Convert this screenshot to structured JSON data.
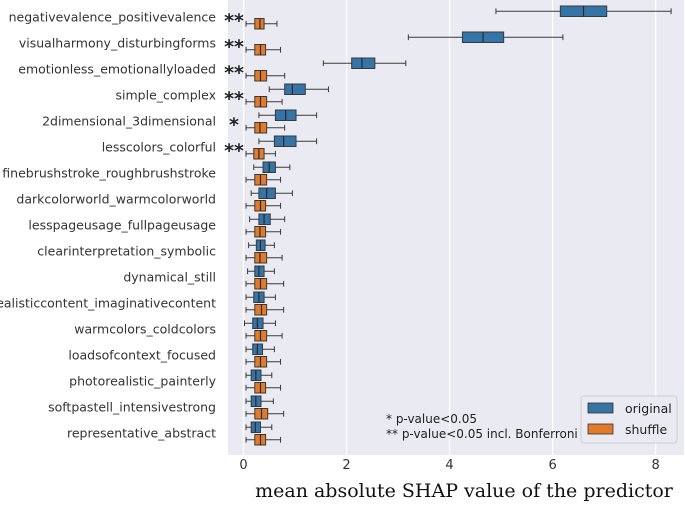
{
  "chart_data": {
    "type": "boxplot",
    "orientation": "horizontal",
    "xlabel": "mean absolute SHAP value of the predictor",
    "xlim": [
      -0.3,
      8.55
    ],
    "xticks": [
      0,
      2,
      4,
      6,
      8
    ],
    "grid": true,
    "legend_position": "bottom-right",
    "colors": {
      "original": "#3574a6",
      "shuffle": "#e07b2b",
      "background": "#eaeaf2",
      "median": "#2b2b2b"
    },
    "annotations": [
      "* p-value<0.05",
      "** p-value<0.05 incl. Bonferroni"
    ],
    "series": [
      {
        "name": "original"
      },
      {
        "name": "shuffle"
      }
    ],
    "categories": [
      {
        "label": "negativevalence_positivevalence",
        "sig": "**",
        "original": {
          "whislo": 4.9,
          "q1": 6.15,
          "med": 6.6,
          "q3": 7.05,
          "whishi": 8.3
        },
        "shuffle": {
          "whislo": 0.05,
          "q1": 0.22,
          "med": 0.32,
          "q3": 0.4,
          "whishi": 0.65
        }
      },
      {
        "label": "visualharmony_disturbingforms",
        "sig": "**",
        "original": {
          "whislo": 3.2,
          "q1": 4.25,
          "med": 4.65,
          "q3": 5.05,
          "whishi": 6.2
        },
        "shuffle": {
          "whislo": 0.05,
          "q1": 0.22,
          "med": 0.33,
          "q3": 0.43,
          "whishi": 0.72
        }
      },
      {
        "label": "emotionless_emotionallyloaded",
        "sig": "**",
        "original": {
          "whislo": 1.55,
          "q1": 2.1,
          "med": 2.3,
          "q3": 2.55,
          "whishi": 3.15
        },
        "shuffle": {
          "whislo": 0.05,
          "q1": 0.22,
          "med": 0.33,
          "q3": 0.45,
          "whishi": 0.8
        }
      },
      {
        "label": "simple_complex",
        "sig": "**",
        "original": {
          "whislo": 0.5,
          "q1": 0.8,
          "med": 0.95,
          "q3": 1.2,
          "whishi": 1.65
        },
        "shuffle": {
          "whislo": 0.05,
          "q1": 0.22,
          "med": 0.33,
          "q3": 0.45,
          "whishi": 0.75
        }
      },
      {
        "label": "2dimensional_3dimensional",
        "sig": "*",
        "original": {
          "whislo": 0.3,
          "q1": 0.62,
          "med": 0.82,
          "q3": 1.02,
          "whishi": 1.42
        },
        "shuffle": {
          "whislo": 0.05,
          "q1": 0.22,
          "med": 0.32,
          "q3": 0.45,
          "whishi": 0.8
        }
      },
      {
        "label": "lesscolors_colorful",
        "sig": "**",
        "original": {
          "whislo": 0.3,
          "q1": 0.6,
          "med": 0.78,
          "q3": 1.02,
          "whishi": 1.42
        },
        "shuffle": {
          "whislo": 0.05,
          "q1": 0.2,
          "med": 0.3,
          "q3": 0.4,
          "whishi": 0.62
        }
      },
      {
        "label": "finebrushstroke_roughbrushstroke",
        "sig": "",
        "original": {
          "whislo": 0.2,
          "q1": 0.38,
          "med": 0.5,
          "q3": 0.62,
          "whishi": 0.9
        },
        "shuffle": {
          "whislo": 0.05,
          "q1": 0.22,
          "med": 0.33,
          "q3": 0.45,
          "whishi": 0.72
        }
      },
      {
        "label": "darkcolorworld_warmcolorworld",
        "sig": "",
        "original": {
          "whislo": 0.15,
          "q1": 0.3,
          "med": 0.45,
          "q3": 0.62,
          "whishi": 0.95
        },
        "shuffle": {
          "whislo": 0.05,
          "q1": 0.22,
          "med": 0.33,
          "q3": 0.43,
          "whishi": 0.72
        }
      },
      {
        "label": "lesspageusage_fullpageusage",
        "sig": "",
        "original": {
          "whislo": 0.12,
          "q1": 0.3,
          "med": 0.4,
          "q3": 0.52,
          "whishi": 0.8
        },
        "shuffle": {
          "whislo": 0.05,
          "q1": 0.22,
          "med": 0.32,
          "q3": 0.43,
          "whishi": 0.72
        }
      },
      {
        "label": "clearinterpretation_symbolic",
        "sig": "",
        "original": {
          "whislo": 0.1,
          "q1": 0.25,
          "med": 0.33,
          "q3": 0.42,
          "whishi": 0.6
        },
        "shuffle": {
          "whislo": 0.05,
          "q1": 0.22,
          "med": 0.32,
          "q3": 0.45,
          "whishi": 0.75
        }
      },
      {
        "label": "dynamical_still",
        "sig": "",
        "original": {
          "whislo": 0.08,
          "q1": 0.22,
          "med": 0.3,
          "q3": 0.4,
          "whishi": 0.6
        },
        "shuffle": {
          "whislo": 0.05,
          "q1": 0.22,
          "med": 0.33,
          "q3": 0.45,
          "whishi": 0.78
        }
      },
      {
        "label": "realisticcontent_imaginativecontent",
        "sig": "",
        "original": {
          "whislo": 0.05,
          "q1": 0.2,
          "med": 0.3,
          "q3": 0.4,
          "whishi": 0.62
        },
        "shuffle": {
          "whislo": 0.05,
          "q1": 0.22,
          "med": 0.35,
          "q3": 0.45,
          "whishi": 0.78
        }
      },
      {
        "label": "warmcolors_coldcolors",
        "sig": "",
        "original": {
          "whislo": 0.02,
          "q1": 0.18,
          "med": 0.27,
          "q3": 0.38,
          "whishi": 0.62
        },
        "shuffle": {
          "whislo": 0.05,
          "q1": 0.22,
          "med": 0.33,
          "q3": 0.45,
          "whishi": 0.75
        }
      },
      {
        "label": "loadsofcontext_focused",
        "sig": "",
        "original": {
          "whislo": 0.05,
          "q1": 0.18,
          "med": 0.27,
          "q3": 0.37,
          "whishi": 0.6
        },
        "shuffle": {
          "whislo": 0.05,
          "q1": 0.22,
          "med": 0.33,
          "q3": 0.45,
          "whishi": 0.72
        }
      },
      {
        "label": "photorealistic_painterly",
        "sig": "",
        "original": {
          "whislo": 0.05,
          "q1": 0.15,
          "med": 0.24,
          "q3": 0.34,
          "whishi": 0.55
        },
        "shuffle": {
          "whislo": 0.05,
          "q1": 0.22,
          "med": 0.33,
          "q3": 0.43,
          "whishi": 0.72
        }
      },
      {
        "label": "softpastell_intensivestrong",
        "sig": "",
        "original": {
          "whislo": 0.05,
          "q1": 0.15,
          "med": 0.24,
          "q3": 0.34,
          "whishi": 0.58
        },
        "shuffle": {
          "whislo": 0.05,
          "q1": 0.22,
          "med": 0.35,
          "q3": 0.47,
          "whishi": 0.78
        }
      },
      {
        "label": "representative_abstract",
        "sig": "",
        "original": {
          "whislo": 0.05,
          "q1": 0.15,
          "med": 0.23,
          "q3": 0.33,
          "whishi": 0.55
        },
        "shuffle": {
          "whislo": 0.05,
          "q1": 0.22,
          "med": 0.33,
          "q3": 0.43,
          "whishi": 0.72
        }
      }
    ]
  }
}
